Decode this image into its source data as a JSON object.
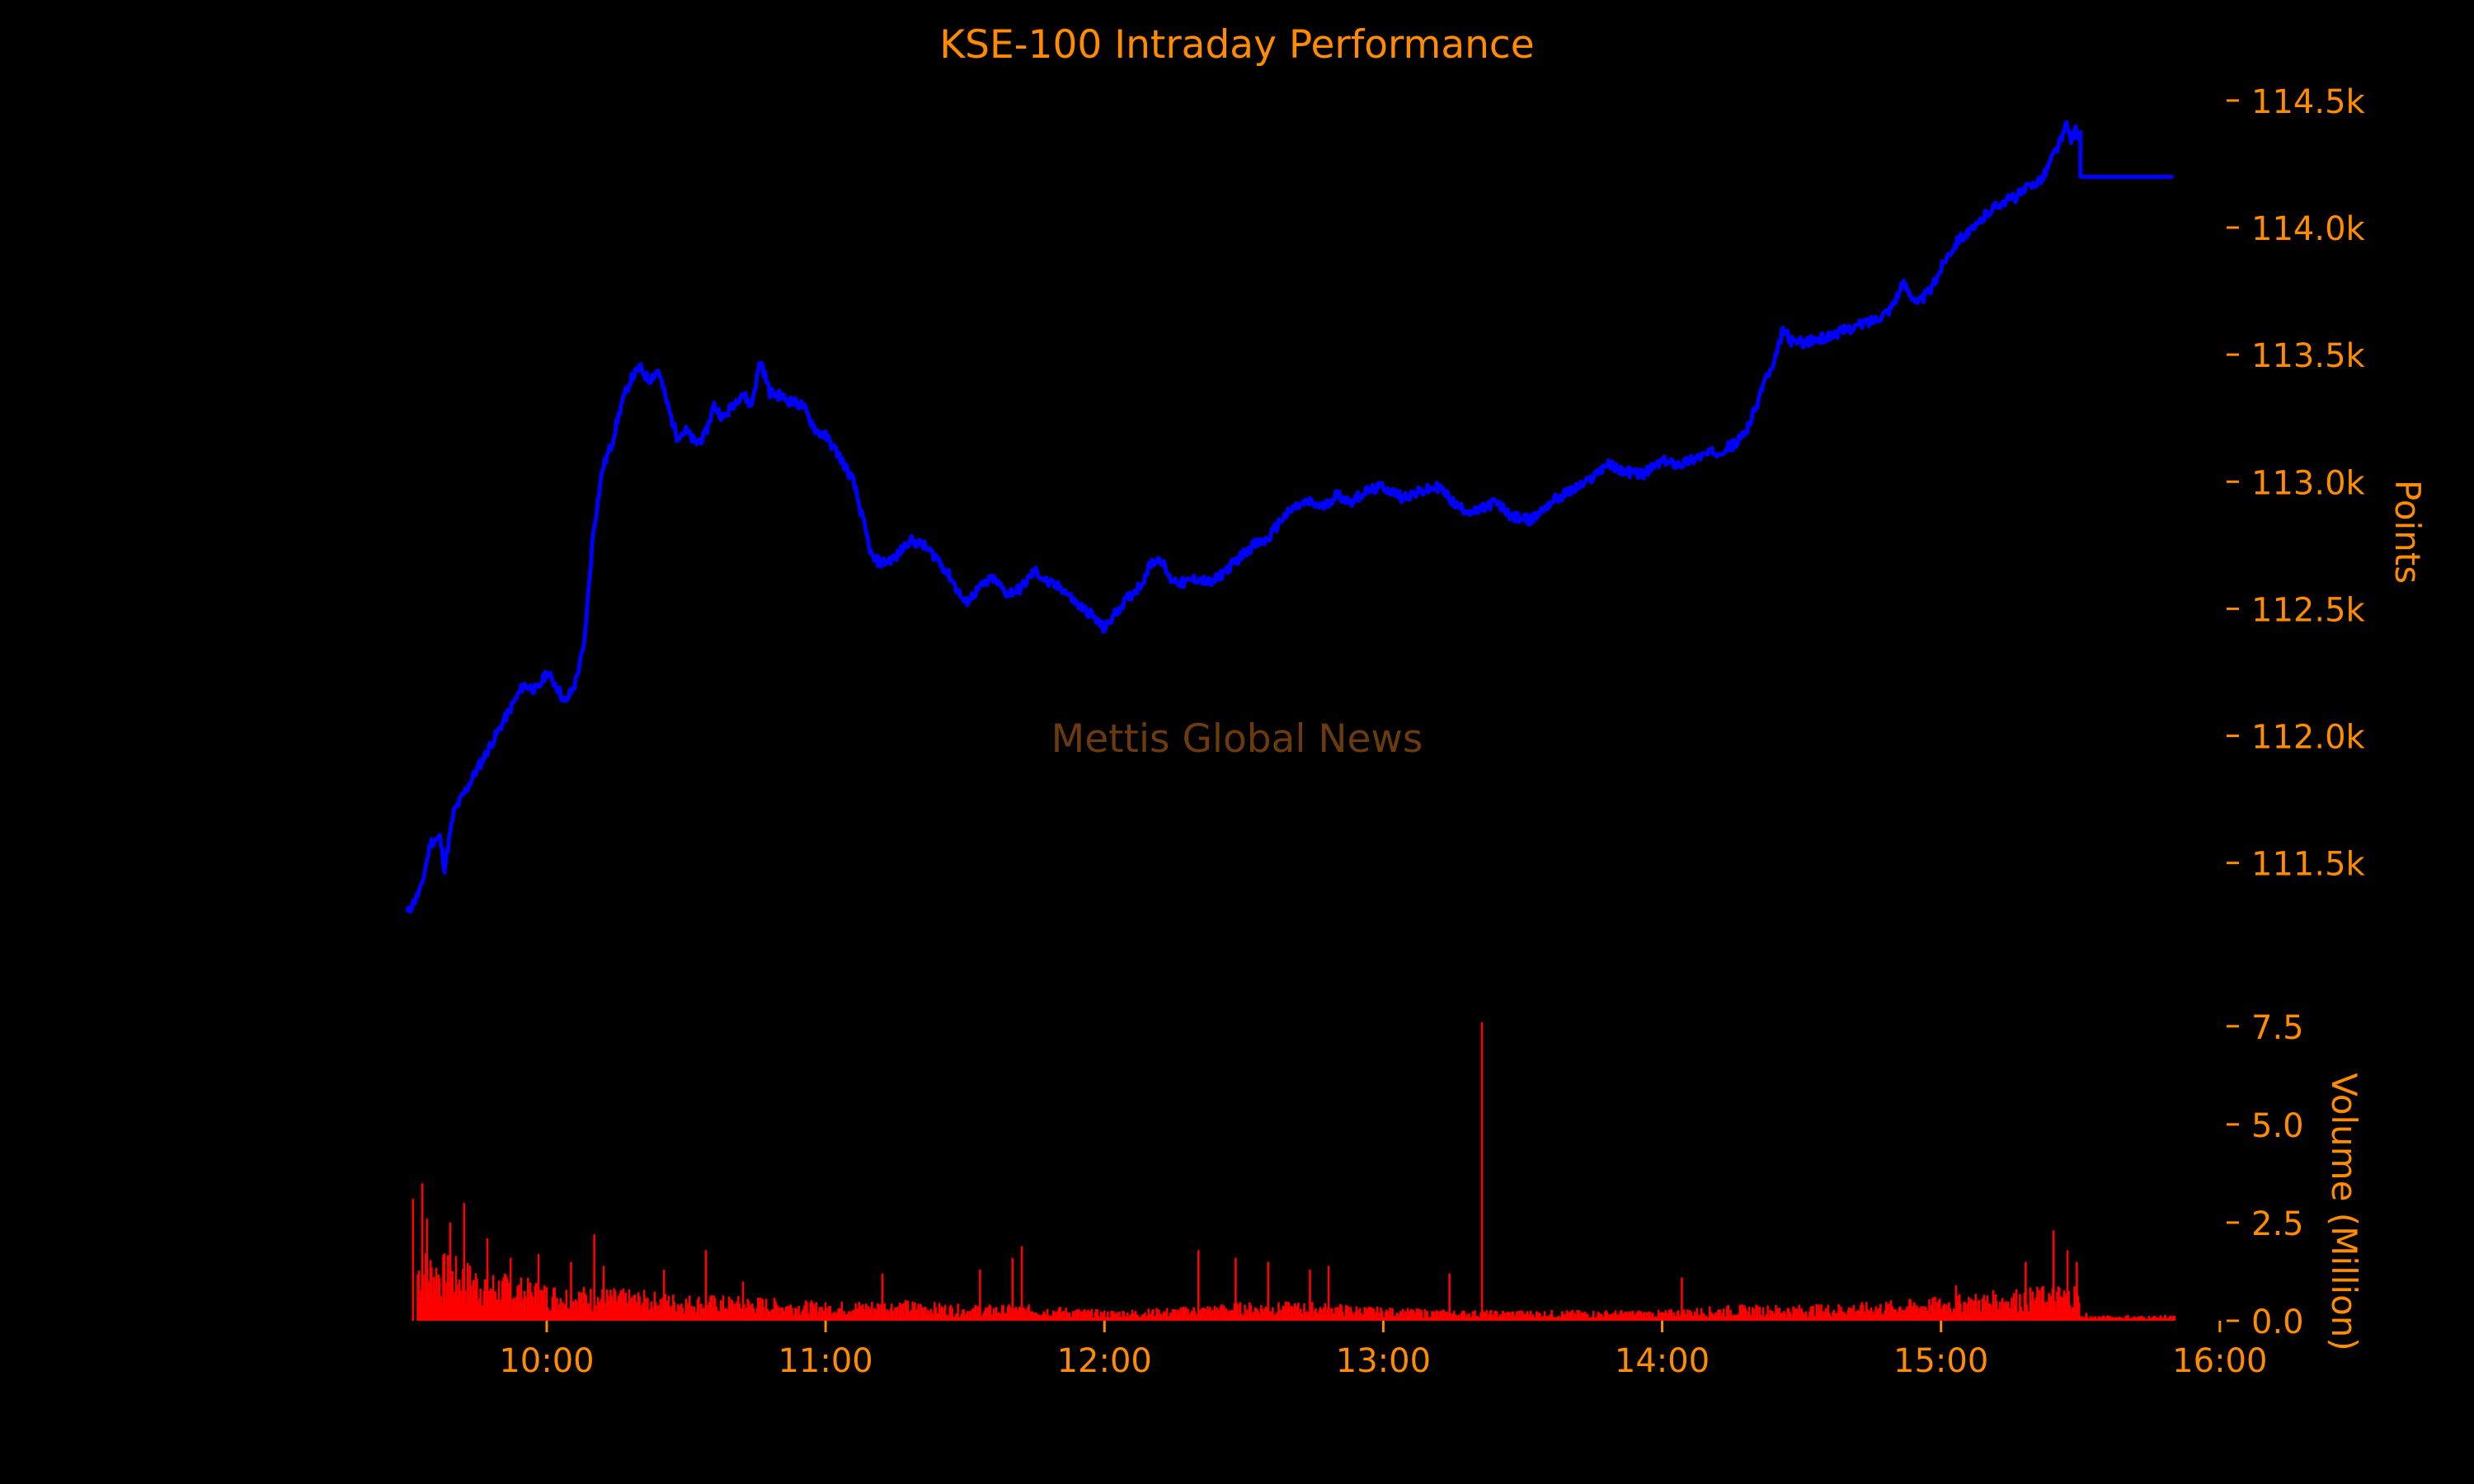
{
  "chart_data": [
    {
      "type": "line",
      "title": "KSE-100 Intraday Performance",
      "watermark": "Mettis Global News",
      "ylabel": "Points",
      "ylim": [
        111100,
        114610
      ],
      "xlim": [
        "09:27",
        "16:05"
      ],
      "yticks": [
        111500,
        112000,
        112500,
        113000,
        113500,
        114000,
        114500
      ],
      "ytick_labels": [
        "111.5k",
        "112.0k",
        "112.5k",
        "113.0k",
        "113.5k",
        "114.0k",
        "114.5k"
      ],
      "grid": false,
      "series": [
        {
          "color": "#0000ff",
          "points": [
            [
              "09:30",
              111300
            ],
            [
              "09:33",
              111400
            ],
            [
              "09:35",
              111580
            ],
            [
              "09:37",
              111600
            ],
            [
              "09:38",
              111480
            ],
            [
              "09:40",
              111700
            ],
            [
              "09:43",
              111800
            ],
            [
              "09:46",
              111900
            ],
            [
              "09:49",
              112000
            ],
            [
              "09:52",
              112100
            ],
            [
              "09:55",
              112200
            ],
            [
              "09:58",
              112180
            ],
            [
              "10:00",
              112250
            ],
            [
              "10:02",
              112200
            ],
            [
              "10:04",
              112130
            ],
            [
              "10:06",
              112200
            ],
            [
              "10:08",
              112350
            ],
            [
              "10:10",
              112800
            ],
            [
              "10:12",
              113050
            ],
            [
              "10:14",
              113150
            ],
            [
              "10:16",
              113300
            ],
            [
              "10:18",
              113400
            ],
            [
              "10:20",
              113450
            ],
            [
              "10:22",
              113400
            ],
            [
              "10:24",
              113440
            ],
            [
              "10:26",
              113300
            ],
            [
              "10:28",
              113180
            ],
            [
              "10:30",
              113200
            ],
            [
              "10:32",
              113150
            ],
            [
              "10:34",
              113180
            ],
            [
              "10:36",
              113300
            ],
            [
              "10:38",
              113250
            ],
            [
              "10:40",
              113300
            ],
            [
              "10:42",
              113350
            ],
            [
              "10:44",
              113300
            ],
            [
              "10:46",
              113480
            ],
            [
              "10:48",
              113350
            ],
            [
              "10:50",
              113340
            ],
            [
              "10:52",
              113320
            ],
            [
              "10:55",
              113300
            ],
            [
              "10:58",
              113200
            ],
            [
              "11:00",
              113180
            ],
            [
              "11:03",
              113100
            ],
            [
              "11:06",
              113000
            ],
            [
              "11:08",
              112850
            ],
            [
              "11:10",
              112700
            ],
            [
              "11:12",
              112680
            ],
            [
              "11:15",
              112700
            ],
            [
              "11:18",
              112770
            ],
            [
              "11:21",
              112750
            ],
            [
              "11:24",
              112700
            ],
            [
              "11:27",
              112620
            ],
            [
              "11:30",
              112520
            ],
            [
              "11:33",
              112580
            ],
            [
              "11:36",
              112620
            ],
            [
              "11:39",
              112560
            ],
            [
              "11:42",
              112580
            ],
            [
              "11:45",
              112650
            ],
            [
              "11:48",
              112600
            ],
            [
              "11:51",
              112580
            ],
            [
              "11:54",
              112520
            ],
            [
              "11:57",
              112480
            ],
            [
              "12:00",
              112420
            ],
            [
              "12:03",
              112500
            ],
            [
              "12:06",
              112560
            ],
            [
              "12:08",
              112600
            ],
            [
              "12:10",
              112680
            ],
            [
              "12:12",
              112700
            ],
            [
              "12:14",
              112620
            ],
            [
              "12:17",
              112600
            ],
            [
              "12:20",
              112620
            ],
            [
              "12:23",
              112600
            ],
            [
              "12:26",
              112650
            ],
            [
              "12:29",
              112700
            ],
            [
              "12:32",
              112750
            ],
            [
              "12:35",
              112770
            ],
            [
              "12:38",
              112850
            ],
            [
              "12:41",
              112900
            ],
            [
              "12:44",
              112920
            ],
            [
              "12:47",
              112900
            ],
            [
              "12:50",
              112950
            ],
            [
              "12:53",
              112920
            ],
            [
              "12:56",
              112960
            ],
            [
              "13:00",
              112980
            ],
            [
              "13:04",
              112940
            ],
            [
              "13:08",
              112960
            ],
            [
              "13:12",
              112980
            ],
            [
              "13:16",
              112900
            ],
            [
              "13:20",
              112880
            ],
            [
              "13:24",
              112920
            ],
            [
              "13:28",
              112860
            ],
            [
              "13:32",
              112850
            ],
            [
              "13:36",
              112920
            ],
            [
              "13:40",
              112960
            ],
            [
              "13:44",
              113000
            ],
            [
              "13:48",
              113070
            ],
            [
              "13:52",
              113040
            ],
            [
              "13:56",
              113030
            ],
            [
              "14:00",
              113080
            ],
            [
              "14:04",
              113070
            ],
            [
              "14:08",
              113100
            ],
            [
              "14:12",
              113120
            ],
            [
              "14:16",
              113150
            ],
            [
              "14:18",
              113200
            ],
            [
              "14:20",
              113280
            ],
            [
              "14:22",
              113400
            ],
            [
              "14:24",
              113450
            ],
            [
              "14:26",
              113600
            ],
            [
              "14:28",
              113550
            ],
            [
              "14:31",
              113550
            ],
            [
              "14:34",
              113560
            ],
            [
              "14:37",
              113580
            ],
            [
              "14:40",
              113600
            ],
            [
              "14:43",
              113620
            ],
            [
              "14:46",
              113640
            ],
            [
              "14:49",
              113680
            ],
            [
              "14:52",
              113780
            ],
            [
              "14:55",
              113700
            ],
            [
              "14:58",
              113760
            ],
            [
              "15:01",
              113880
            ],
            [
              "15:04",
              113960
            ],
            [
              "15:07",
              113990
            ],
            [
              "15:10",
              114060
            ],
            [
              "15:13",
              114100
            ],
            [
              "15:16",
              114120
            ],
            [
              "15:19",
              114160
            ],
            [
              "15:22",
              114200
            ],
            [
              "15:24",
              114280
            ],
            [
              "15:26",
              114350
            ],
            [
              "15:27",
              114400
            ],
            [
              "15:28",
              114350
            ],
            [
              "15:29",
              114380
            ],
            [
              "15:30",
              114360
            ],
            [
              "15:30",
              114200
            ],
            [
              "15:50",
              114200
            ]
          ]
        }
      ]
    },
    {
      "type": "bar",
      "ylabel": "Volume (Million)",
      "ylim": [
        0,
        7.6
      ],
      "yticks": [
        0.0,
        2.5,
        5.0,
        7.5
      ],
      "ytick_labels": [
        "0.0",
        "2.5",
        "5.0",
        "7.5"
      ],
      "xticks": [
        "10:00",
        "11:00",
        "12:00",
        "13:00",
        "14:00",
        "15:00",
        "16:00"
      ],
      "grid": false,
      "color": "#ff0000",
      "spikes": [
        [
          "09:31",
          3.1
        ],
        [
          "09:33",
          3.5
        ],
        [
          "09:34",
          2.6
        ],
        [
          "09:39",
          2.5
        ],
        [
          "09:42",
          3.0
        ],
        [
          "09:47",
          2.1
        ],
        [
          "09:52",
          1.6
        ],
        [
          "09:58",
          1.7
        ],
        [
          "10:05",
          1.5
        ],
        [
          "10:10",
          2.2
        ],
        [
          "10:12",
          1.4
        ],
        [
          "10:25",
          1.3
        ],
        [
          "10:34",
          1.8
        ],
        [
          "10:42",
          1.0
        ],
        [
          "11:12",
          1.2
        ],
        [
          "11:33",
          1.3
        ],
        [
          "11:40",
          1.6
        ],
        [
          "11:42",
          1.9
        ],
        [
          "12:20",
          1.8
        ],
        [
          "12:28",
          1.6
        ],
        [
          "12:35",
          1.5
        ],
        [
          "12:44",
          1.3
        ],
        [
          "12:48",
          1.4
        ],
        [
          "13:14",
          1.2
        ],
        [
          "13:21",
          7.6
        ],
        [
          "14:04",
          1.1
        ],
        [
          "15:03",
          0.9
        ],
        [
          "15:18",
          1.5
        ],
        [
          "15:24",
          2.3
        ],
        [
          "15:27",
          1.8
        ],
        [
          "15:29",
          1.5
        ],
        [
          "15:31",
          0.2
        ],
        [
          "15:40",
          0.15
        ],
        [
          "15:48",
          0.15
        ]
      ],
      "base_profile": [
        [
          "09:32",
          1.4
        ],
        [
          "09:40",
          1.2
        ],
        [
          "09:50",
          0.9
        ],
        [
          "10:00",
          0.7
        ],
        [
          "10:15",
          0.6
        ],
        [
          "10:30",
          0.5
        ],
        [
          "10:45",
          0.45
        ],
        [
          "11:00",
          0.35
        ],
        [
          "11:15",
          0.4
        ],
        [
          "11:30",
          0.3
        ],
        [
          "11:45",
          0.3
        ],
        [
          "12:00",
          0.2
        ],
        [
          "12:15",
          0.25
        ],
        [
          "12:30",
          0.35
        ],
        [
          "12:45",
          0.35
        ],
        [
          "13:00",
          0.25
        ],
        [
          "13:15",
          0.2
        ],
        [
          "13:30",
          0.2
        ],
        [
          "13:45",
          0.2
        ],
        [
          "14:00",
          0.2
        ],
        [
          "14:15",
          0.3
        ],
        [
          "14:30",
          0.3
        ],
        [
          "14:45",
          0.35
        ],
        [
          "15:00",
          0.45
        ],
        [
          "15:15",
          0.6
        ],
        [
          "15:29",
          0.7
        ],
        [
          "15:30",
          0.1
        ],
        [
          "15:50",
          0.1
        ]
      ]
    }
  ]
}
